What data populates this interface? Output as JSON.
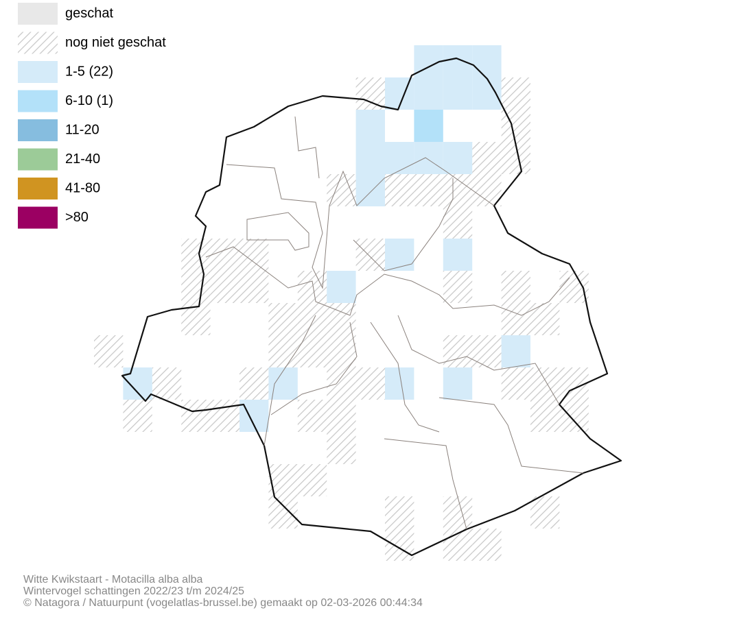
{
  "legend": [
    {
      "label": "geschat",
      "color": "#e8e8e8"
    },
    {
      "label": "nog niet geschat",
      "color": "hatch"
    },
    {
      "label": "1-5 (22)",
      "color": "#d5ebf9"
    },
    {
      "label": "6-10 (1)",
      "color": "#b3e1f9"
    },
    {
      "label": "11-20",
      "color": "#86bddf"
    },
    {
      "label": "21-40",
      "color": "#9ccb98"
    },
    {
      "label": "41-80",
      "color": "#d09421"
    },
    {
      "label": ">80",
      "color": "#9b0062"
    }
  ],
  "caption": [
    "Witte Kwikstaart - Motacilla alba alba",
    "Wintervogel schattingen 2022/23 t/m 2024/25",
    "© Natagora / Natuurpunt (vogelatlas-brussel.be) gemaakt op 02-03-2026 00:44:34"
  ]
}
